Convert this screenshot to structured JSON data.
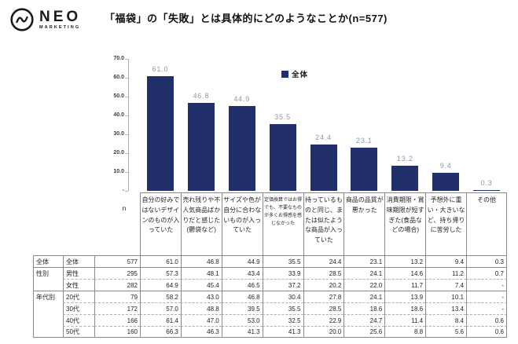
{
  "brand": {
    "name": "NEO",
    "sub": "MARKETING"
  },
  "title": "「福袋」の「失敗」とは具体的にどのようなことか(n=577)",
  "chart_data": {
    "type": "bar",
    "title": "「福袋」の「失敗」とは具体的にどのようなことか(n=577)",
    "legend": "全体",
    "legend_position": "top-center-inside",
    "bar_color": "#21306B",
    "label_color": "#8d97a8",
    "ylim": [
      0,
      70
    ],
    "ytick_labels": [
      "70.0",
      "60.0",
      "50.0",
      "40.0",
      "30.0",
      "20.0",
      "10.0",
      "-"
    ],
    "grid": false,
    "categories": [
      "自分の好みではないデザインのものが入っていた",
      "売れ残りや不人気商品ばかりだと感じた(鬱袋など)",
      "サイズや色が自分に合わないものが入っていた",
      "定価換算ではお得でも、不要なものが多くお得感を感じなかった",
      "持っているものと同じ、または似たような商品が入っていた",
      "商品の品質が悪かった",
      "消費期限・賞味期限が短すぎた(食品などの場合)",
      "予想外に重い・大きいなど、持ち帰りに苦労した",
      "その他"
    ],
    "series": [
      {
        "name": "全体",
        "values": [
          61.0,
          46.8,
          44.9,
          35.5,
          24.4,
          23.1,
          13.2,
          9.4,
          0.3
        ]
      }
    ]
  },
  "table": {
    "n_header": "n",
    "col_headers": [
      "自分の好みではないデザインのものが入っていた",
      "売れ残りや不人気商品ばかりだと感じた(鬱袋など)",
      "サイズや色が自分に合わないものが入っていた",
      "定価換算ではお得でも、不要なものが多くお得感を感じなかった",
      "持っているものと同じ、または似たような商品が入っていた",
      "商品の品質が悪かった",
      "消費期限・賞味期限が短すぎた(食品などの場合)",
      "予想外に重い・大きいなど、持ち帰りに苦労した",
      "その他"
    ],
    "rows": [
      {
        "group": "全体",
        "label": "全体",
        "n": "577",
        "values": [
          "61.0",
          "46.8",
          "44.9",
          "35.5",
          "24.4",
          "23.1",
          "13.2",
          "9.4",
          "0.3"
        ]
      },
      {
        "group": "性別",
        "label": "男性",
        "n": "295",
        "values": [
          "57.3",
          "48.1",
          "43.4",
          "33.9",
          "28.5",
          "24.1",
          "14.6",
          "11.2",
          "0.7"
        ]
      },
      {
        "group": "",
        "label": "女性",
        "n": "282",
        "values": [
          "64.9",
          "45.4",
          "46.5",
          "37.2",
          "20.2",
          "22.0",
          "11.7",
          "7.4",
          "-"
        ]
      },
      {
        "group": "年代別",
        "label": "20代",
        "n": "79",
        "values": [
          "58.2",
          "43.0",
          "46.8",
          "30.4",
          "27.8",
          "24.1",
          "13.9",
          "10.1",
          "-"
        ]
      },
      {
        "group": "",
        "label": "30代",
        "n": "172",
        "values": [
          "57.0",
          "48.8",
          "39.5",
          "35.5",
          "28.5",
          "18.6",
          "18.6",
          "13.4",
          "-"
        ]
      },
      {
        "group": "",
        "label": "40代",
        "n": "166",
        "values": [
          "61.4",
          "47.0",
          "53.0",
          "32.5",
          "22.9",
          "24.7",
          "11.4",
          "8.4",
          "0.6"
        ]
      },
      {
        "group": "",
        "label": "50代",
        "n": "160",
        "values": [
          "66.3",
          "46.3",
          "41.3",
          "41.3",
          "20.0",
          "25.6",
          "8.8",
          "5.6",
          "0.6"
        ]
      }
    ]
  }
}
